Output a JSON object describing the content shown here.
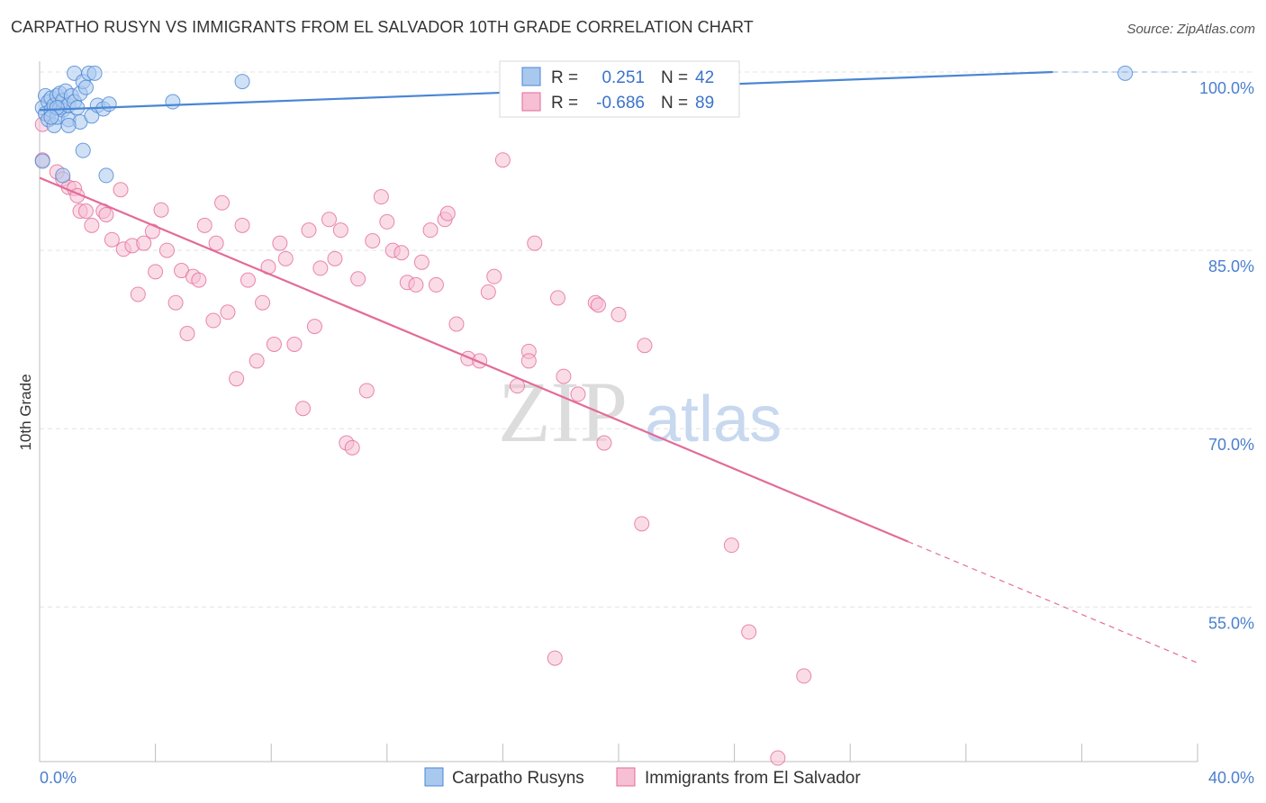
{
  "title": "CARPATHO RUSYN VS IMMIGRANTS FROM EL SALVADOR 10TH GRADE CORRELATION CHART",
  "source": "Source: ZipAtlas.com",
  "watermark": {
    "zip": "ZIP",
    "atlas": "atlas"
  },
  "colors": {
    "blue": "#4a86d4",
    "blue_fill": "#a9c8ee",
    "pink": "#e36b98",
    "pink_fill": "#f6bfd3",
    "grid": "#e3e3e3"
  },
  "stats": {
    "r_label": "R =",
    "n_label": "N =",
    "blue": {
      "r": "0.251",
      "n": "42"
    },
    "pink": {
      "r": "-0.686",
      "n": "89"
    }
  },
  "chart_data": {
    "type": "scatter",
    "xlabel": "",
    "ylabel": "10th Grade",
    "xlim": [
      0,
      40
    ],
    "ylim": [
      42,
      100
    ],
    "x_tick_labels": [
      {
        "value": 0,
        "label": "0.0%"
      },
      {
        "value": 40,
        "label": "40.0%"
      }
    ],
    "y_tick_labels": [
      {
        "value": 100,
        "label": "100.0%"
      },
      {
        "value": 85,
        "label": "85.0%"
      },
      {
        "value": 70,
        "label": "70.0%"
      },
      {
        "value": 55,
        "label": "55.0%"
      }
    ],
    "legend_position": "bottom",
    "series": [
      {
        "name": "Carpatho Rusyns",
        "color": "#4a86d4",
        "trend": {
          "x": [
            0,
            35
          ],
          "y": [
            96.8,
            100
          ]
        },
        "points": [
          [
            0.1,
            97.0
          ],
          [
            0.2,
            96.5
          ],
          [
            0.2,
            98.0
          ],
          [
            0.3,
            97.5
          ],
          [
            0.3,
            96.0
          ],
          [
            0.4,
            97.8
          ],
          [
            0.4,
            96.8
          ],
          [
            0.5,
            95.5
          ],
          [
            0.5,
            97.2
          ],
          [
            0.6,
            98.0
          ],
          [
            0.6,
            96.2
          ],
          [
            0.7,
            97.0
          ],
          [
            0.7,
            98.2
          ],
          [
            0.8,
            96.8
          ],
          [
            0.8,
            97.6
          ],
          [
            0.9,
            98.4
          ],
          [
            1.0,
            97.2
          ],
          [
            1.0,
            96.0
          ],
          [
            1.1,
            98.0
          ],
          [
            1.2,
            97.5
          ],
          [
            1.2,
            99.9
          ],
          [
            1.3,
            97.0
          ],
          [
            1.4,
            98.2
          ],
          [
            1.4,
            95.8
          ],
          [
            1.5,
            99.2
          ],
          [
            1.5,
            93.4
          ],
          [
            1.6,
            98.7
          ],
          [
            1.7,
            99.9
          ],
          [
            1.8,
            96.3
          ],
          [
            1.9,
            99.9
          ],
          [
            2.0,
            97.2
          ],
          [
            2.2,
            96.9
          ],
          [
            2.3,
            91.3
          ],
          [
            2.4,
            97.3
          ],
          [
            4.6,
            97.5
          ],
          [
            7.0,
            99.2
          ],
          [
            0.1,
            92.5
          ],
          [
            0.8,
            91.3
          ],
          [
            0.6,
            97.0
          ],
          [
            0.4,
            96.2
          ],
          [
            1.0,
            95.5
          ],
          [
            37.5,
            99.9
          ]
        ]
      },
      {
        "name": "Immigrants from El Salvador",
        "color": "#e36b98",
        "trend": {
          "x": [
            0,
            30
          ],
          "y": [
            91.1,
            60.5
          ]
        },
        "trend_dashed": {
          "x": [
            30,
            40
          ],
          "y": [
            60.5,
            50.3
          ]
        },
        "points": [
          [
            0.1,
            92.6
          ],
          [
            0.1,
            95.6
          ],
          [
            0.6,
            91.6
          ],
          [
            0.8,
            91.0
          ],
          [
            1.0,
            90.3
          ],
          [
            1.2,
            90.2
          ],
          [
            1.3,
            89.6
          ],
          [
            1.4,
            88.3
          ],
          [
            1.6,
            88.3
          ],
          [
            1.8,
            87.1
          ],
          [
            2.2,
            88.3
          ],
          [
            2.3,
            88.0
          ],
          [
            2.5,
            85.9
          ],
          [
            2.8,
            90.1
          ],
          [
            2.9,
            85.1
          ],
          [
            3.2,
            85.4
          ],
          [
            3.4,
            81.3
          ],
          [
            3.6,
            85.6
          ],
          [
            3.9,
            86.6
          ],
          [
            4.0,
            83.2
          ],
          [
            4.2,
            88.4
          ],
          [
            4.4,
            85.0
          ],
          [
            4.7,
            80.6
          ],
          [
            4.9,
            83.3
          ],
          [
            5.1,
            78.0
          ],
          [
            5.3,
            82.8
          ],
          [
            5.5,
            82.5
          ],
          [
            5.7,
            87.1
          ],
          [
            6.0,
            79.1
          ],
          [
            6.1,
            85.6
          ],
          [
            6.3,
            89.0
          ],
          [
            6.5,
            79.8
          ],
          [
            6.8,
            74.2
          ],
          [
            7.0,
            87.1
          ],
          [
            7.2,
            82.5
          ],
          [
            7.5,
            75.7
          ],
          [
            7.7,
            80.6
          ],
          [
            7.9,
            83.6
          ],
          [
            8.1,
            77.1
          ],
          [
            8.3,
            85.6
          ],
          [
            8.5,
            84.3
          ],
          [
            8.8,
            77.1
          ],
          [
            9.1,
            71.7
          ],
          [
            9.3,
            86.7
          ],
          [
            9.5,
            78.6
          ],
          [
            9.7,
            83.5
          ],
          [
            10.0,
            87.6
          ],
          [
            10.2,
            84.3
          ],
          [
            10.4,
            86.7
          ],
          [
            10.6,
            68.8
          ],
          [
            10.8,
            68.4
          ],
          [
            11.0,
            82.6
          ],
          [
            11.3,
            73.2
          ],
          [
            11.5,
            85.8
          ],
          [
            11.8,
            89.5
          ],
          [
            12.0,
            87.4
          ],
          [
            12.2,
            85.0
          ],
          [
            12.5,
            84.8
          ],
          [
            12.7,
            82.3
          ],
          [
            13.0,
            82.1
          ],
          [
            13.2,
            84.0
          ],
          [
            13.5,
            86.7
          ],
          [
            13.7,
            82.1
          ],
          [
            14.0,
            87.6
          ],
          [
            14.1,
            88.1
          ],
          [
            14.4,
            78.8
          ],
          [
            14.8,
            75.9
          ],
          [
            15.2,
            75.7
          ],
          [
            15.5,
            81.5
          ],
          [
            15.7,
            82.8
          ],
          [
            16.0,
            92.6
          ],
          [
            16.5,
            73.6
          ],
          [
            16.9,
            76.5
          ],
          [
            16.9,
            75.7
          ],
          [
            17.1,
            85.6
          ],
          [
            17.8,
            50.7
          ],
          [
            17.9,
            81.0
          ],
          [
            18.1,
            74.4
          ],
          [
            18.6,
            72.9
          ],
          [
            19.2,
            80.6
          ],
          [
            19.3,
            80.4
          ],
          [
            19.5,
            68.8
          ],
          [
            20.0,
            79.6
          ],
          [
            20.8,
            62.0
          ],
          [
            20.9,
            77.0
          ],
          [
            23.9,
            60.2
          ],
          [
            24.5,
            52.9
          ],
          [
            25.5,
            42.3
          ],
          [
            26.4,
            49.2
          ]
        ]
      }
    ]
  }
}
